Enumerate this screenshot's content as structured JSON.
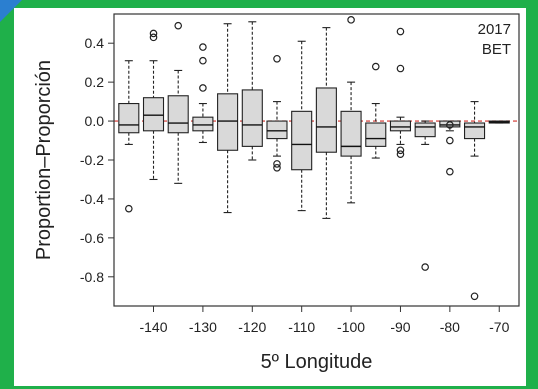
{
  "chart_data": {
    "type": "box",
    "annotation_lines": [
      "2017",
      "BET"
    ],
    "xlabel": "5º Longitude",
    "ylabel": "Proportion–Proporción",
    "x_ticks": [
      -140,
      -130,
      -120,
      -110,
      -100,
      -90,
      -80,
      -70
    ],
    "y_ticks": [
      0.4,
      0.2,
      0.0,
      -0.2,
      -0.4,
      -0.6,
      -0.8
    ],
    "y_tick_labels": [
      "0.4",
      "0.2",
      "0.0",
      "-0.2",
      "-0.4",
      "-0.6",
      "-0.8"
    ],
    "xlim": [
      -148,
      -66
    ],
    "ylim": [
      -0.95,
      0.55
    ],
    "reference_line": {
      "y": 0.0,
      "color": "#d9534f",
      "style": "dashed"
    },
    "box_fill": "#d9d9d9",
    "boxes": [
      {
        "x": -145,
        "q1": -0.06,
        "median": -0.02,
        "q3": 0.09,
        "whisker_low": -0.12,
        "whisker_high": 0.31,
        "outliers": [
          -0.45
        ]
      },
      {
        "x": -140,
        "q1": -0.05,
        "median": 0.03,
        "q3": 0.12,
        "whisker_low": -0.3,
        "whisker_high": 0.31,
        "outliers": [
          0.43,
          0.45
        ]
      },
      {
        "x": -135,
        "q1": -0.06,
        "median": -0.01,
        "q3": 0.13,
        "whisker_low": -0.32,
        "whisker_high": 0.26,
        "outliers": [
          0.49
        ]
      },
      {
        "x": -130,
        "q1": -0.05,
        "median": -0.02,
        "q3": 0.02,
        "whisker_low": -0.11,
        "whisker_high": 0.09,
        "outliers": [
          0.38,
          0.31,
          0.17
        ]
      },
      {
        "x": -125,
        "q1": -0.15,
        "median": 0.0,
        "q3": 0.14,
        "whisker_low": -0.47,
        "whisker_high": 0.5,
        "outliers": []
      },
      {
        "x": -120,
        "q1": -0.13,
        "median": -0.02,
        "q3": 0.16,
        "whisker_low": -0.2,
        "whisker_high": 0.51,
        "outliers": []
      },
      {
        "x": -115,
        "q1": -0.09,
        "median": -0.05,
        "q3": 0.0,
        "whisker_low": -0.18,
        "whisker_high": 0.1,
        "outliers": [
          0.32,
          -0.22,
          -0.24
        ]
      },
      {
        "x": -110,
        "q1": -0.25,
        "median": -0.12,
        "q3": 0.05,
        "whisker_low": -0.46,
        "whisker_high": 0.41,
        "outliers": []
      },
      {
        "x": -105,
        "q1": -0.16,
        "median": -0.03,
        "q3": 0.17,
        "whisker_low": -0.5,
        "whisker_high": 0.48,
        "outliers": []
      },
      {
        "x": -100,
        "q1": -0.18,
        "median": -0.13,
        "q3": 0.05,
        "whisker_low": -0.42,
        "whisker_high": 0.2,
        "outliers": [
          0.52
        ]
      },
      {
        "x": -95,
        "q1": -0.13,
        "median": -0.09,
        "q3": -0.01,
        "whisker_low": -0.19,
        "whisker_high": 0.09,
        "outliers": [
          0.28
        ]
      },
      {
        "x": -90,
        "q1": -0.05,
        "median": -0.03,
        "q3": 0.0,
        "whisker_low": -0.12,
        "whisker_high": 0.02,
        "outliers": [
          0.46,
          0.27,
          -0.15,
          -0.17
        ]
      },
      {
        "x": -85,
        "q1": -0.08,
        "median": -0.03,
        "q3": -0.01,
        "whisker_low": -0.12,
        "whisker_high": 0.0,
        "outliers": [
          -0.75
        ]
      },
      {
        "x": -80,
        "q1": -0.03,
        "median": -0.02,
        "q3": 0.0,
        "whisker_low": -0.05,
        "whisker_high": 0.0,
        "outliers": [
          -0.02,
          -0.1,
          -0.26
        ]
      },
      {
        "x": -75,
        "q1": -0.09,
        "median": -0.03,
        "q3": -0.01,
        "whisker_low": -0.18,
        "whisker_high": 0.1,
        "outliers": [
          -0.9
        ]
      },
      {
        "x": -70,
        "q1": -0.01,
        "median": -0.005,
        "q3": 0.0,
        "whisker_low": -0.01,
        "whisker_high": 0.0,
        "outliers": []
      }
    ]
  }
}
